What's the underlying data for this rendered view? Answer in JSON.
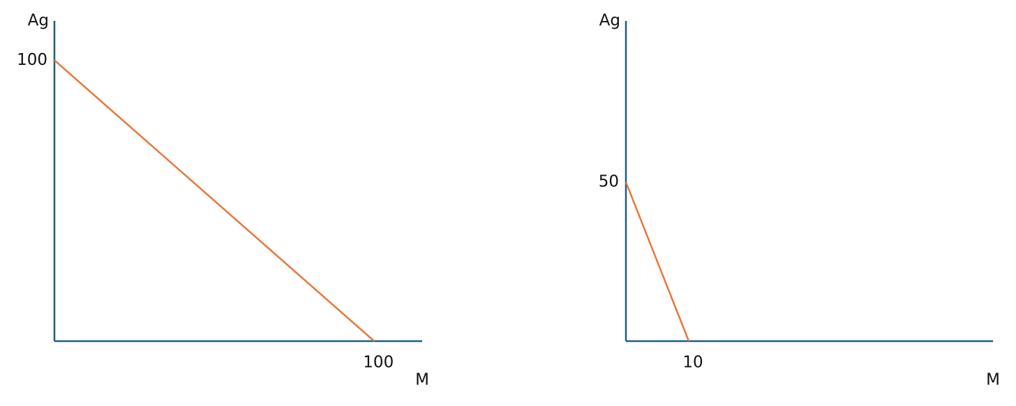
{
  "chart_data": [
    {
      "type": "line",
      "ylabel": "Ag",
      "xlabel": "M",
      "x": [
        0,
        100
      ],
      "series": [
        {
          "color": "#e8773a",
          "values": [
            100,
            0
          ]
        }
      ],
      "xlim": [
        0,
        115
      ],
      "ylim": [
        0,
        114
      ],
      "xticks": [
        100
      ],
      "yticks": [
        100
      ]
    },
    {
      "type": "line",
      "ylabel": "Ag",
      "xlabel": "M",
      "x": [
        0,
        10
      ],
      "series": [
        {
          "color": "#e8773a",
          "values": [
            50,
            0
          ]
        }
      ],
      "xlim": [
        0,
        58.4
      ],
      "ylim": [
        0,
        100.7
      ],
      "xticks": [
        10
      ],
      "yticks": [
        50
      ]
    }
  ]
}
